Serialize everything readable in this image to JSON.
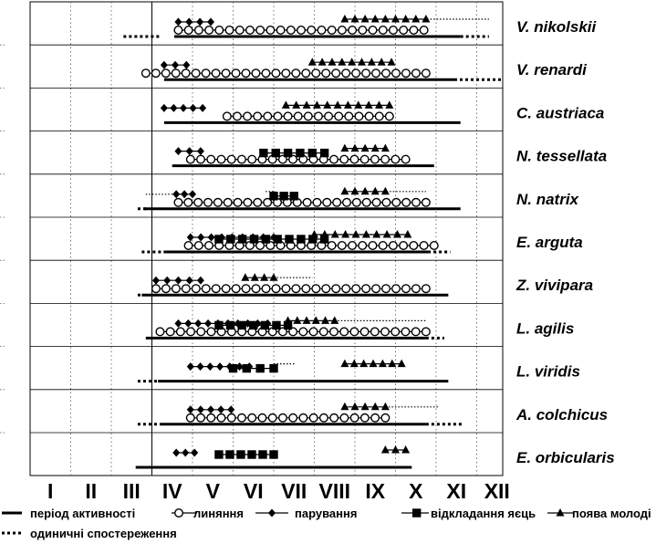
{
  "chart_data": {
    "type": "timeline",
    "months": [
      "I",
      "II",
      "III",
      "IV",
      "V",
      "VI",
      "VII",
      "VIII",
      "IX",
      "X",
      "XI",
      "XII"
    ],
    "legend": {
      "activity": "період активності",
      "molting": "линяння",
      "mating": "парування",
      "egg_laying": "відкладання яєць",
      "young": "поява молоді",
      "single_obs": "одиничні спостереження"
    },
    "series_styles": {
      "activity": {
        "marker": "solid-line",
        "color": "#000000"
      },
      "molting": {
        "marker": "open-circle",
        "color": "#000000"
      },
      "mating": {
        "marker": "diamond",
        "color": "#000000"
      },
      "egg_laying": {
        "marker": "square",
        "color": "#000000"
      },
      "young": {
        "marker": "triangle",
        "color": "#000000"
      },
      "single_obs": {
        "marker": "dotted-line",
        "color": "#000000"
      }
    },
    "species": [
      {
        "name": "V. nikolskii",
        "activity": [
          3.55,
          10.6
        ],
        "single": [
          [
            2.3,
            3.2
          ],
          [
            10.6,
            11.3
          ]
        ],
        "molting": [
          3.65,
          9.7
        ],
        "mating": [
          3.65,
          4.45
        ],
        "mating_dots": [],
        "egg_laying": null,
        "young": [
          7.75,
          9.75
        ],
        "young_dots": [
          [
            9.7,
            11.3
          ]
        ]
      },
      {
        "name": "V. renardi",
        "activity": [
          3.3,
          10.45
        ],
        "single": [
          [
            10.45,
            11.6
          ]
        ],
        "molting": [
          2.85,
          9.75
        ],
        "mating": [
          3.3,
          3.85
        ],
        "mating_dots": [],
        "egg_laying": null,
        "young": [
          6.95,
          8.9
        ],
        "young_dots": []
      },
      {
        "name": "C. austriaca",
        "activity": [
          3.3,
          10.6
        ],
        "single": [],
        "molting": [
          4.85,
          8.85
        ],
        "mating": [
          3.3,
          4.25
        ],
        "mating_dots": [],
        "egg_laying": null,
        "young": [
          6.3,
          8.85
        ],
        "young_dots": []
      },
      {
        "name": "N. tessellata",
        "activity": [
          3.5,
          9.95
        ],
        "single": [],
        "molting": [
          3.95,
          9.25
        ],
        "mating": [
          3.65,
          4.2
        ],
        "mating_dots": [],
        "egg_laying": [
          5.75,
          7.25
        ],
        "young": [
          7.75,
          8.75
        ],
        "young_dots": []
      },
      {
        "name": "N. natrix",
        "activity": [
          2.8,
          10.6
        ],
        "single": [
          [
            2.65,
            2.9
          ]
        ],
        "molting": [
          3.65,
          9.75
        ],
        "mating": [
          3.6,
          4.0
        ],
        "mating_dots": [
          [
            2.85,
            3.6
          ]
        ],
        "egg_laying": [
          6.0,
          6.5
        ],
        "young": [
          7.75,
          8.75
        ],
        "young_dots": [
          [
            5.8,
            6.05
          ],
          [
            8.7,
            9.75
          ]
        ]
      },
      {
        "name": "E. arguta",
        "activity": [
          3.35,
          9.8
        ],
        "single": [
          [
            2.75,
            3.35
          ],
          [
            9.8,
            10.35
          ]
        ],
        "molting": [
          3.9,
          9.95
        ],
        "mating": [
          3.95,
          6.0
        ],
        "mating_dots": [],
        "egg_laying": [
          4.65,
          7.25
        ],
        "young": [
          7.0,
          9.3
        ],
        "young_dots": []
      },
      {
        "name": "Z. vivipara",
        "activity": [
          2.75,
          10.3
        ],
        "single": [
          [
            2.65,
            2.75
          ]
        ],
        "molting": [
          3.1,
          9.75
        ],
        "mating": [
          3.1,
          4.2
        ],
        "mating_dots": [],
        "egg_laying": null,
        "young": [
          5.3,
          6.0
        ],
        "young_dots": [
          [
            6.0,
            6.95
          ]
        ]
      },
      {
        "name": "L. agilis",
        "activity": [
          2.85,
          9.75
        ],
        "single": [
          [
            9.75,
            10.2
          ]
        ],
        "molting": [
          3.2,
          9.75
        ],
        "mating": [
          3.65,
          5.85
        ],
        "mating_dots": [],
        "egg_laying": [
          4.65,
          6.35
        ],
        "young": [
          6.35,
          7.5
        ],
        "young_dots": [
          [
            7.5,
            9.75
          ]
        ]
      },
      {
        "name": "L. viridis",
        "activity": [
          3.15,
          10.3
        ],
        "single": [
          [
            2.65,
            3.15
          ]
        ],
        "molting": null,
        "mating": [
          3.95,
          5.4
        ],
        "mating_dots": [],
        "egg_laying": [
          5.0,
          6.0
        ],
        "young": [
          7.75,
          9.15
        ],
        "young_dots": [
          [
            6.0,
            6.55
          ]
        ]
      },
      {
        "name": "A. colchicus",
        "activity": [
          3.2,
          9.75
        ],
        "single": [
          [
            2.65,
            3.2
          ],
          [
            9.75,
            10.65
          ]
        ],
        "molting": [
          3.95,
          8.75
        ],
        "mating": [
          3.95,
          4.95
        ],
        "mating_dots": [],
        "egg_laying": null,
        "young": [
          7.75,
          8.75
        ],
        "young_dots": [
          [
            8.75,
            10.05
          ]
        ]
      },
      {
        "name": "E. orbicularis",
        "activity": [
          2.6,
          9.4
        ],
        "single": [],
        "molting": null,
        "mating": [
          3.6,
          4.05
        ],
        "mating_dots": [],
        "egg_laying": [
          4.65,
          6.0
        ],
        "young": [
          8.75,
          9.25
        ],
        "young_dots": []
      }
    ]
  }
}
